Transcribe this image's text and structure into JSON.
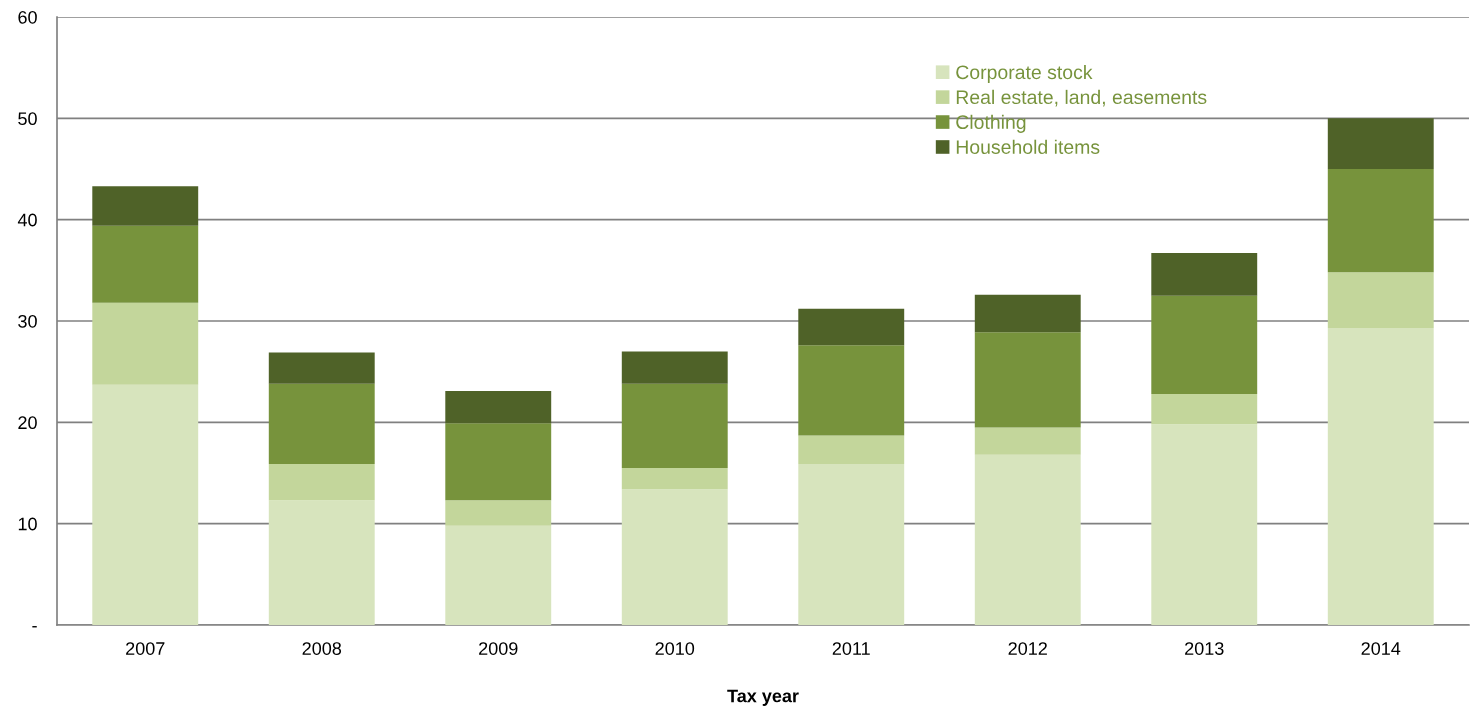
{
  "chart_data": {
    "type": "bar",
    "stacked": true,
    "xlabel": "Tax year",
    "categories": [
      "2007",
      "2008",
      "2009",
      "2010",
      "2011",
      "2012",
      "2013",
      "2014"
    ],
    "series": [
      {
        "name": "Corporate stock",
        "color": "#d7e4bd",
        "values": [
          23.7,
          12.3,
          9.8,
          13.4,
          15.9,
          16.8,
          19.8,
          29.3
        ]
      },
      {
        "name": "Real estate, land, easements",
        "color": "#c3d69b",
        "values": [
          8.1,
          3.6,
          2.5,
          2.1,
          2.8,
          2.7,
          3.0,
          5.5
        ]
      },
      {
        "name": "Clothing",
        "color": "#77933c",
        "values": [
          7.6,
          7.9,
          7.6,
          8.3,
          8.9,
          9.4,
          9.7,
          10.2
        ]
      },
      {
        "name": "Household items",
        "color": "#4f6228",
        "values": [
          3.9,
          3.1,
          3.2,
          3.2,
          3.6,
          3.7,
          4.2,
          5.0
        ]
      }
    ],
    "ylim": [
      0,
      60
    ],
    "yticks": [
      {
        "value": 0,
        "label": "-"
      },
      10,
      20,
      30,
      40,
      50,
      60
    ],
    "grid": "y",
    "legend": "top right"
  }
}
